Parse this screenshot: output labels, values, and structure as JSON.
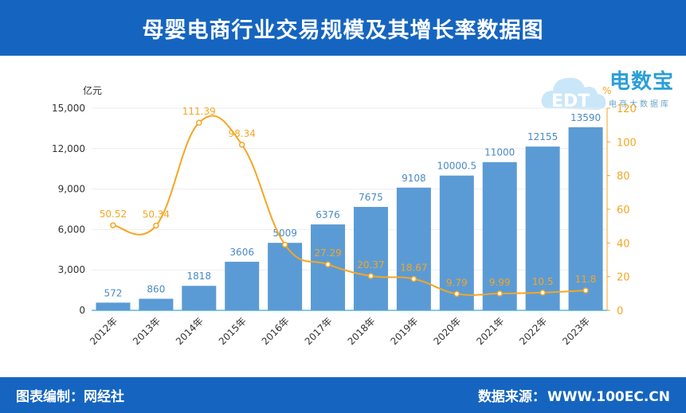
{
  "header": {
    "title": "母婴电商行业交易规模及其增长率数据图"
  },
  "footer": {
    "left": "图表编制：网经社",
    "right_label": "数据来源：",
    "right_value": "WWW.100EC.CN"
  },
  "logo": {
    "main": "电数宝",
    "sub": "电商大数据库",
    "badge": "EDT"
  },
  "colors": {
    "bar": "#5B9BD5",
    "line": "#F5A623",
    "header": "#1565C0",
    "axis_left": "#333333",
    "axis_right": "#F5A623"
  },
  "chart_data": {
    "type": "bar+line",
    "title": "母婴电商行业交易规模及其增长率数据图",
    "ylabel": "亿元",
    "y2label": "%",
    "categories": [
      "2012年",
      "2013年",
      "2014年",
      "2015年",
      "2016年",
      "2017年",
      "2018年",
      "2019年",
      "2020年",
      "2021年",
      "2022年",
      "2023年"
    ],
    "ylim": [
      0,
      15000
    ],
    "y_ticks": [
      0,
      3000,
      6000,
      9000,
      12000,
      15000
    ],
    "y_tick_labels": [
      "0",
      "3,000",
      "6,000",
      "9,000",
      "12,000",
      "15,000"
    ],
    "y2lim": [
      0,
      120
    ],
    "y2_ticks": [
      0,
      20,
      40,
      60,
      80,
      100,
      120
    ],
    "series": [
      {
        "name": "交易规模",
        "type": "bar",
        "axis": "left",
        "values": [
          572,
          860,
          1818,
          3606,
          5009,
          6376,
          7675,
          9108,
          10000.5,
          11000,
          12155,
          13590
        ],
        "labels": [
          "572",
          "860",
          "1818",
          "3606",
          "5009",
          "6376",
          "7675",
          "9108",
          "10000.5",
          "11000",
          "12155",
          "13590"
        ]
      },
      {
        "name": "增长率",
        "type": "line",
        "axis": "right",
        "values": [
          50.52,
          50.34,
          111.39,
          98.34,
          39.0,
          27.29,
          20.37,
          18.67,
          9.79,
          9.99,
          10.5,
          11.8
        ],
        "labels": [
          "50.52",
          "50.34",
          "111.39",
          "98.34",
          "",
          "27.29",
          "20.37",
          "18.67",
          "9.79",
          "9.99",
          "10.5",
          "11.8"
        ]
      }
    ]
  }
}
